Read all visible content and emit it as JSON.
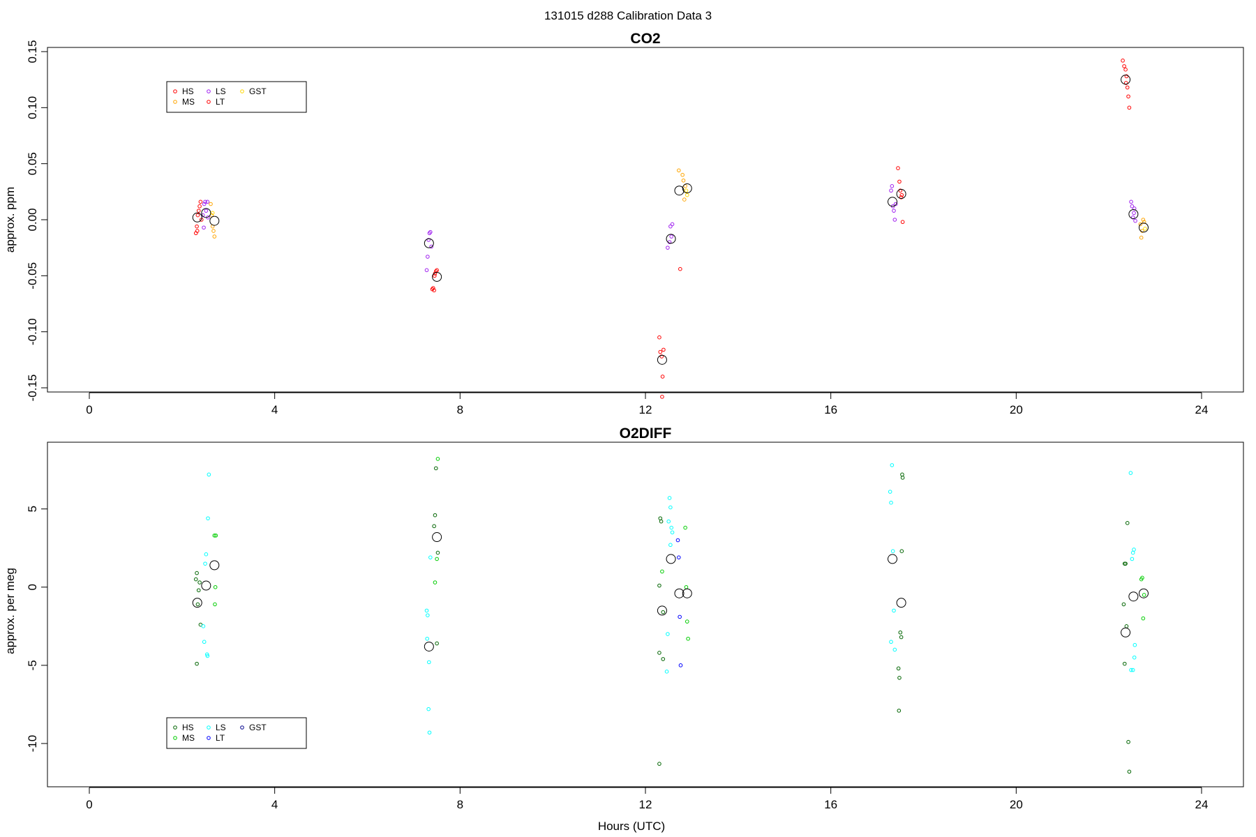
{
  "figure": {
    "main_title": "131015   d288   Calibration Data 3",
    "xlabel": "Hours (UTC)"
  },
  "chart_data": [
    {
      "type": "scatter",
      "title": "CO2",
      "ylabel": "approx. ppm",
      "xlim": [
        0,
        24
      ],
      "ylim": [
        -0.15,
        0.15
      ],
      "xticks": [
        "0",
        "4",
        "8",
        "12",
        "16",
        "20",
        "24"
      ],
      "yticks": [
        "-0.15",
        "-0.10",
        "-0.05",
        "0.00",
        "0.05",
        "0.10",
        "0.15"
      ],
      "grid": false,
      "legend_position": "top-left",
      "legend": [
        {
          "name": "HS",
          "color": "#ff0000"
        },
        {
          "name": "MS",
          "color": "#ffa500"
        },
        {
          "name": "LS",
          "color": "#a020f0"
        },
        {
          "name": "LT",
          "color": "#ff0000"
        },
        {
          "name": "GST",
          "color": "#ffd700"
        }
      ],
      "points": [
        {
          "x": 2.3,
          "y": -0.012,
          "c": "#ff0000"
        },
        {
          "x": 2.32,
          "y": -0.006,
          "c": "#ff0000"
        },
        {
          "x": 2.34,
          "y": 0.004,
          "c": "#ff0000"
        },
        {
          "x": 2.36,
          "y": 0.008,
          "c": "#ff0000"
        },
        {
          "x": 2.38,
          "y": 0.012,
          "c": "#ff0000"
        },
        {
          "x": 2.4,
          "y": 0.016,
          "c": "#ff0000"
        },
        {
          "x": 2.42,
          "y": 0.0,
          "c": "#ff0000"
        },
        {
          "x": 2.33,
          "y": -0.01,
          "c": "#ff0000"
        },
        {
          "x": 2.45,
          "y": 0.004,
          "c": "#a020f0"
        },
        {
          "x": 2.48,
          "y": 0.014,
          "c": "#a020f0"
        },
        {
          "x": 2.5,
          "y": 0.016,
          "c": "#a020f0"
        },
        {
          "x": 2.52,
          "y": 0.008,
          "c": "#a020f0"
        },
        {
          "x": 2.55,
          "y": 0.016,
          "c": "#a020f0"
        },
        {
          "x": 2.47,
          "y": -0.007,
          "c": "#a020f0"
        },
        {
          "x": 2.56,
          "y": 0.002,
          "c": "#a020f0"
        },
        {
          "x": 2.62,
          "y": 0.014,
          "c": "#ffa500"
        },
        {
          "x": 2.64,
          "y": 0.004,
          "c": "#ffa500"
        },
        {
          "x": 2.66,
          "y": -0.006,
          "c": "#ffa500"
        },
        {
          "x": 2.68,
          "y": -0.01,
          "c": "#ffa500"
        },
        {
          "x": 2.7,
          "y": -0.015,
          "c": "#ffa500"
        },
        {
          "x": 2.66,
          "y": 0.006,
          "c": "#ffd700"
        },
        {
          "x": 7.28,
          "y": -0.045,
          "c": "#a020f0"
        },
        {
          "x": 7.3,
          "y": -0.033,
          "c": "#a020f0"
        },
        {
          "x": 7.32,
          "y": -0.018,
          "c": "#a020f0"
        },
        {
          "x": 7.34,
          "y": -0.012,
          "c": "#a020f0"
        },
        {
          "x": 7.36,
          "y": -0.011,
          "c": "#a020f0"
        },
        {
          "x": 7.38,
          "y": -0.024,
          "c": "#a020f0"
        },
        {
          "x": 7.4,
          "y": -0.062,
          "c": "#ff0000"
        },
        {
          "x": 7.42,
          "y": -0.061,
          "c": "#ff0000"
        },
        {
          "x": 7.44,
          "y": -0.063,
          "c": "#ff0000"
        },
        {
          "x": 7.46,
          "y": -0.048,
          "c": "#ff0000"
        },
        {
          "x": 7.48,
          "y": -0.046,
          "c": "#ff0000"
        },
        {
          "x": 7.5,
          "y": -0.045,
          "c": "#ff0000"
        },
        {
          "x": 7.45,
          "y": -0.05,
          "c": "#ff0000"
        },
        {
          "x": 12.3,
          "y": -0.105,
          "c": "#ff0000"
        },
        {
          "x": 12.32,
          "y": -0.118,
          "c": "#ff0000"
        },
        {
          "x": 12.35,
          "y": -0.122,
          "c": "#ff0000"
        },
        {
          "x": 12.37,
          "y": -0.14,
          "c": "#ff0000"
        },
        {
          "x": 12.36,
          "y": -0.158,
          "c": "#ff0000"
        },
        {
          "x": 12.39,
          "y": -0.116,
          "c": "#ff0000"
        },
        {
          "x": 12.48,
          "y": -0.025,
          "c": "#a020f0"
        },
        {
          "x": 12.52,
          "y": -0.02,
          "c": "#a020f0"
        },
        {
          "x": 12.54,
          "y": -0.006,
          "c": "#a020f0"
        },
        {
          "x": 12.58,
          "y": -0.004,
          "c": "#a020f0"
        },
        {
          "x": 12.56,
          "y": -0.015,
          "c": "#a020f0"
        },
        {
          "x": 12.72,
          "y": 0.044,
          "c": "#ffa500"
        },
        {
          "x": 12.75,
          "y": -0.044,
          "c": "#ff0000"
        },
        {
          "x": 12.8,
          "y": 0.04,
          "c": "#ffa500"
        },
        {
          "x": 12.82,
          "y": 0.035,
          "c": "#ffa500"
        },
        {
          "x": 12.84,
          "y": 0.018,
          "c": "#ffa500"
        },
        {
          "x": 12.86,
          "y": 0.03,
          "c": "#ffa500"
        },
        {
          "x": 12.9,
          "y": 0.022,
          "c": "#ffd700"
        },
        {
          "x": 12.88,
          "y": 0.026,
          "c": "#ffd700"
        },
        {
          "x": 17.3,
          "y": 0.026,
          "c": "#a020f0"
        },
        {
          "x": 17.32,
          "y": 0.03,
          "c": "#a020f0"
        },
        {
          "x": 17.34,
          "y": 0.012,
          "c": "#a020f0"
        },
        {
          "x": 17.36,
          "y": 0.008,
          "c": "#a020f0"
        },
        {
          "x": 17.38,
          "y": 0.0,
          "c": "#a020f0"
        },
        {
          "x": 17.4,
          "y": 0.014,
          "c": "#a020f0"
        },
        {
          "x": 17.45,
          "y": 0.046,
          "c": "#ff0000"
        },
        {
          "x": 17.48,
          "y": 0.034,
          "c": "#ff0000"
        },
        {
          "x": 17.5,
          "y": 0.026,
          "c": "#ff0000"
        },
        {
          "x": 17.52,
          "y": 0.02,
          "c": "#ff0000"
        },
        {
          "x": 17.55,
          "y": -0.002,
          "c": "#ff0000"
        },
        {
          "x": 17.53,
          "y": 0.022,
          "c": "#ff0000"
        },
        {
          "x": 22.3,
          "y": 0.142,
          "c": "#ff0000"
        },
        {
          "x": 22.33,
          "y": 0.137,
          "c": "#ff0000"
        },
        {
          "x": 22.36,
          "y": 0.134,
          "c": "#ff0000"
        },
        {
          "x": 22.38,
          "y": 0.128,
          "c": "#ff0000"
        },
        {
          "x": 22.4,
          "y": 0.118,
          "c": "#ff0000"
        },
        {
          "x": 22.42,
          "y": 0.11,
          "c": "#ff0000"
        },
        {
          "x": 22.44,
          "y": 0.1,
          "c": "#ff0000"
        },
        {
          "x": 22.37,
          "y": 0.122,
          "c": "#ff0000"
        },
        {
          "x": 22.48,
          "y": 0.016,
          "c": "#a020f0"
        },
        {
          "x": 22.5,
          "y": 0.012,
          "c": "#a020f0"
        },
        {
          "x": 22.52,
          "y": 0.002,
          "c": "#a020f0"
        },
        {
          "x": 22.55,
          "y": 0.01,
          "c": "#a020f0"
        },
        {
          "x": 22.57,
          "y": -0.001,
          "c": "#a020f0"
        },
        {
          "x": 22.54,
          "y": 0.006,
          "c": "#a020f0"
        },
        {
          "x": 22.68,
          "y": -0.004,
          "c": "#ffa500"
        },
        {
          "x": 22.7,
          "y": -0.016,
          "c": "#ffa500"
        },
        {
          "x": 22.72,
          "y": -0.01,
          "c": "#ffa500"
        },
        {
          "x": 22.74,
          "y": 0.0,
          "c": "#ffa500"
        },
        {
          "x": 22.76,
          "y": -0.002,
          "c": "#ffa500"
        },
        {
          "x": 22.78,
          "y": -0.008,
          "c": "#ffd700"
        }
      ],
      "means": [
        {
          "x": 2.33,
          "y": 0.002
        },
        {
          "x": 2.52,
          "y": 0.006
        },
        {
          "x": 2.7,
          "y": -0.001
        },
        {
          "x": 7.33,
          "y": -0.021
        },
        {
          "x": 7.5,
          "y": -0.051
        },
        {
          "x": 12.36,
          "y": -0.125
        },
        {
          "x": 12.55,
          "y": -0.017
        },
        {
          "x": 12.73,
          "y": 0.026
        },
        {
          "x": 12.9,
          "y": 0.028
        },
        {
          "x": 17.33,
          "y": 0.016
        },
        {
          "x": 17.52,
          "y": 0.023
        },
        {
          "x": 22.36,
          "y": 0.125
        },
        {
          "x": 22.53,
          "y": 0.005
        },
        {
          "x": 22.75,
          "y": -0.007
        }
      ]
    },
    {
      "type": "scatter",
      "title": "O2DIFF",
      "ylabel": "approx. per meg",
      "xlim": [
        0,
        24
      ],
      "ylim": [
        -12.5,
        9.0
      ],
      "xticks": [
        "0",
        "4",
        "8",
        "12",
        "16",
        "20",
        "24"
      ],
      "yticks": [
        "-10",
        "-5",
        "0",
        "5"
      ],
      "grid": false,
      "legend_position": "bottom-left",
      "legend": [
        {
          "name": "HS",
          "color": "#006400"
        },
        {
          "name": "MS",
          "color": "#00cd00"
        },
        {
          "name": "LS",
          "color": "#00ffff"
        },
        {
          "name": "LT",
          "color": "#0000ff"
        },
        {
          "name": "GST",
          "color": "#00008b"
        }
      ],
      "points": [
        {
          "x": 2.3,
          "y": 0.5,
          "c": "#006400"
        },
        {
          "x": 2.32,
          "y": 0.9,
          "c": "#006400"
        },
        {
          "x": 2.34,
          "y": -1.1,
          "c": "#006400"
        },
        {
          "x": 2.36,
          "y": -0.2,
          "c": "#006400"
        },
        {
          "x": 2.38,
          "y": 0.3,
          "c": "#006400"
        },
        {
          "x": 2.4,
          "y": -2.4,
          "c": "#006400"
        },
        {
          "x": 2.32,
          "y": -4.9,
          "c": "#006400"
        },
        {
          "x": 2.46,
          "y": -2.5,
          "c": "#00ffff"
        },
        {
          "x": 2.48,
          "y": -3.5,
          "c": "#00ffff"
        },
        {
          "x": 2.5,
          "y": 1.5,
          "c": "#00ffff"
        },
        {
          "x": 2.52,
          "y": 2.1,
          "c": "#00ffff"
        },
        {
          "x": 2.54,
          "y": -4.3,
          "c": "#00ffff"
        },
        {
          "x": 2.55,
          "y": -4.4,
          "c": "#00ffff"
        },
        {
          "x": 2.56,
          "y": 4.4,
          "c": "#00ffff"
        },
        {
          "x": 2.58,
          "y": 7.2,
          "c": "#00ffff"
        },
        {
          "x": 2.7,
          "y": 3.3,
          "c": "#00cd00"
        },
        {
          "x": 2.73,
          "y": 3.3,
          "c": "#00cd00"
        },
        {
          "x": 2.72,
          "y": 0.0,
          "c": "#00cd00"
        },
        {
          "x": 2.71,
          "y": -1.1,
          "c": "#00cd00"
        },
        {
          "x": 7.28,
          "y": -1.5,
          "c": "#00ffff"
        },
        {
          "x": 7.3,
          "y": -1.8,
          "c": "#00ffff"
        },
        {
          "x": 7.29,
          "y": -3.3,
          "c": "#00ffff"
        },
        {
          "x": 7.33,
          "y": -4.8,
          "c": "#00ffff"
        },
        {
          "x": 7.32,
          "y": -7.8,
          "c": "#00ffff"
        },
        {
          "x": 7.34,
          "y": -9.3,
          "c": "#00ffff"
        },
        {
          "x": 7.36,
          "y": 1.9,
          "c": "#00ffff"
        },
        {
          "x": 7.44,
          "y": 3.9,
          "c": "#006400"
        },
        {
          "x": 7.46,
          "y": 4.6,
          "c": "#006400"
        },
        {
          "x": 7.48,
          "y": 7.6,
          "c": "#006400"
        },
        {
          "x": 7.52,
          "y": 8.2,
          "c": "#00cd00"
        },
        {
          "x": 7.5,
          "y": -3.6,
          "c": "#006400"
        },
        {
          "x": 7.52,
          "y": 2.2,
          "c": "#006400"
        },
        {
          "x": 7.46,
          "y": 0.3,
          "c": "#00cd00"
        },
        {
          "x": 7.5,
          "y": 1.8,
          "c": "#00cd00"
        },
        {
          "x": 12.3,
          "y": -4.2,
          "c": "#006400"
        },
        {
          "x": 12.32,
          "y": 4.4,
          "c": "#006400"
        },
        {
          "x": 12.34,
          "y": 4.2,
          "c": "#006400"
        },
        {
          "x": 12.3,
          "y": 0.1,
          "c": "#006400"
        },
        {
          "x": 12.38,
          "y": -4.6,
          "c": "#006400"
        },
        {
          "x": 12.3,
          "y": -11.3,
          "c": "#006400"
        },
        {
          "x": 12.38,
          "y": -1.6,
          "c": "#006400"
        },
        {
          "x": 12.36,
          "y": 1.0,
          "c": "#00cd00"
        },
        {
          "x": 12.46,
          "y": -5.4,
          "c": "#00ffff"
        },
        {
          "x": 12.48,
          "y": -3.0,
          "c": "#00ffff"
        },
        {
          "x": 12.5,
          "y": 4.2,
          "c": "#00ffff"
        },
        {
          "x": 12.52,
          "y": 5.7,
          "c": "#00ffff"
        },
        {
          "x": 12.54,
          "y": 5.1,
          "c": "#00ffff"
        },
        {
          "x": 12.56,
          "y": 3.8,
          "c": "#00ffff"
        },
        {
          "x": 12.54,
          "y": 2.7,
          "c": "#00ffff"
        },
        {
          "x": 12.58,
          "y": 3.5,
          "c": "#00ffff"
        },
        {
          "x": 12.7,
          "y": 3.0,
          "c": "#0000ff"
        },
        {
          "x": 12.72,
          "y": 1.9,
          "c": "#0000ff"
        },
        {
          "x": 12.74,
          "y": -1.9,
          "c": "#0000ff"
        },
        {
          "x": 12.76,
          "y": -5.0,
          "c": "#0000ff"
        },
        {
          "x": 12.88,
          "y": 0.0,
          "c": "#00cd00"
        },
        {
          "x": 12.9,
          "y": -2.2,
          "c": "#00cd00"
        },
        {
          "x": 12.92,
          "y": -3.3,
          "c": "#00cd00"
        },
        {
          "x": 12.86,
          "y": 3.8,
          "c": "#00cd00"
        },
        {
          "x": 17.28,
          "y": 6.1,
          "c": "#00ffff"
        },
        {
          "x": 17.3,
          "y": 5.4,
          "c": "#00ffff"
        },
        {
          "x": 17.32,
          "y": 7.8,
          "c": "#00ffff"
        },
        {
          "x": 17.34,
          "y": 2.3,
          "c": "#00ffff"
        },
        {
          "x": 17.3,
          "y": -3.5,
          "c": "#00ffff"
        },
        {
          "x": 17.36,
          "y": -1.5,
          "c": "#00ffff"
        },
        {
          "x": 17.38,
          "y": -4.0,
          "c": "#00ffff"
        },
        {
          "x": 17.46,
          "y": -5.2,
          "c": "#006400"
        },
        {
          "x": 17.48,
          "y": -5.8,
          "c": "#006400"
        },
        {
          "x": 17.47,
          "y": -7.9,
          "c": "#006400"
        },
        {
          "x": 17.5,
          "y": -2.9,
          "c": "#006400"
        },
        {
          "x": 17.52,
          "y": -3.2,
          "c": "#006400"
        },
        {
          "x": 17.54,
          "y": 7.2,
          "c": "#006400"
        },
        {
          "x": 17.55,
          "y": 7.0,
          "c": "#006400"
        },
        {
          "x": 17.53,
          "y": 2.3,
          "c": "#006400"
        },
        {
          "x": 22.32,
          "y": -1.1,
          "c": "#006400"
        },
        {
          "x": 22.34,
          "y": 1.5,
          "c": "#006400"
        },
        {
          "x": 22.36,
          "y": 1.5,
          "c": "#006400"
        },
        {
          "x": 22.34,
          "y": -4.9,
          "c": "#006400"
        },
        {
          "x": 22.38,
          "y": -2.5,
          "c": "#006400"
        },
        {
          "x": 22.4,
          "y": 4.1,
          "c": "#006400"
        },
        {
          "x": 22.42,
          "y": -9.9,
          "c": "#006400"
        },
        {
          "x": 22.44,
          "y": -11.8,
          "c": "#006400"
        },
        {
          "x": 22.48,
          "y": -5.3,
          "c": "#00ffff"
        },
        {
          "x": 22.5,
          "y": 1.8,
          "c": "#00ffff"
        },
        {
          "x": 22.52,
          "y": 2.2,
          "c": "#00ffff"
        },
        {
          "x": 22.54,
          "y": 2.4,
          "c": "#00ffff"
        },
        {
          "x": 22.56,
          "y": -3.7,
          "c": "#00ffff"
        },
        {
          "x": 22.55,
          "y": -4.5,
          "c": "#00ffff"
        },
        {
          "x": 22.47,
          "y": 7.3,
          "c": "#00ffff"
        },
        {
          "x": 22.52,
          "y": -5.3,
          "c": "#00ffff"
        },
        {
          "x": 22.7,
          "y": 0.5,
          "c": "#00cd00"
        },
        {
          "x": 22.72,
          "y": 0.6,
          "c": "#00cd00"
        },
        {
          "x": 22.74,
          "y": -2.0,
          "c": "#00cd00"
        },
        {
          "x": 22.76,
          "y": -0.5,
          "c": "#00cd00"
        }
      ],
      "means": [
        {
          "x": 2.33,
          "y": -1.0
        },
        {
          "x": 2.52,
          "y": 0.1
        },
        {
          "x": 2.7,
          "y": 1.4
        },
        {
          "x": 7.33,
          "y": -3.8
        },
        {
          "x": 7.5,
          "y": 3.2
        },
        {
          "x": 12.36,
          "y": -1.5
        },
        {
          "x": 12.55,
          "y": 1.8
        },
        {
          "x": 12.73,
          "y": -0.4
        },
        {
          "x": 12.9,
          "y": -0.4
        },
        {
          "x": 17.33,
          "y": 1.8
        },
        {
          "x": 17.52,
          "y": -1.0
        },
        {
          "x": 22.36,
          "y": -2.9
        },
        {
          "x": 22.53,
          "y": -0.6
        },
        {
          "x": 22.75,
          "y": -0.4
        }
      ]
    }
  ]
}
